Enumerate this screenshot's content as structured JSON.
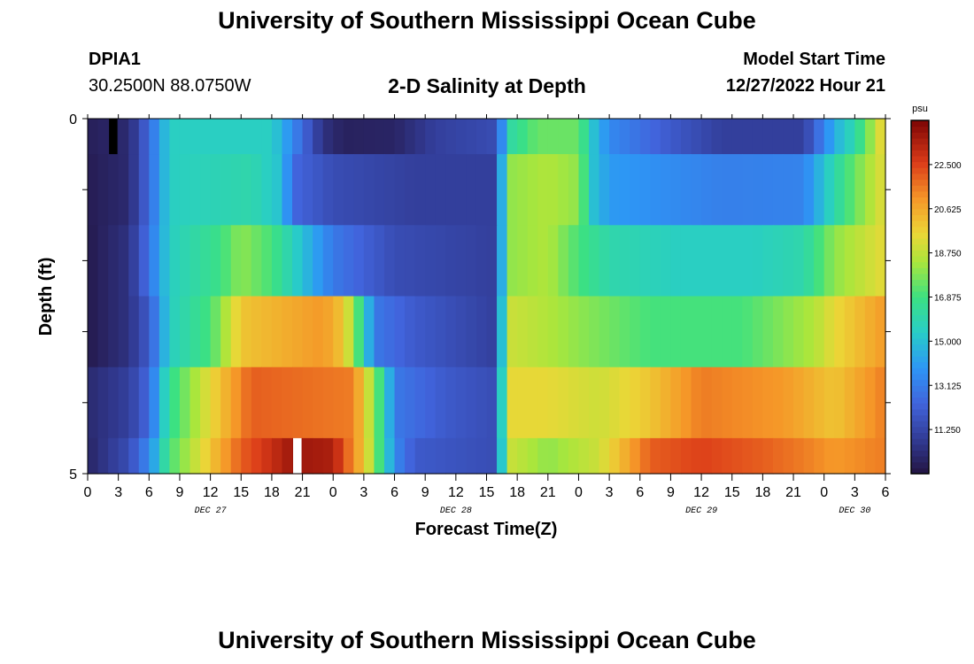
{
  "header": {
    "title": "University of Southern Mississippi Ocean Cube",
    "station": "DPIA1",
    "coords": "30.2500N  88.0750W",
    "plot_title": "2-D Salinity at Depth",
    "start_label": "Model Start Time",
    "start_value": "12/27/2022 Hour 21"
  },
  "footer": {
    "title": "University of Southern Mississippi Ocean Cube"
  },
  "chart_data": {
    "type": "heatmap",
    "title": "2-D Salinity at Depth",
    "xlabel": "Forecast Time(Z)",
    "ylabel": "Depth (ft)",
    "x_hours_from_dec27_00z": [
      0,
      78
    ],
    "y_range_ft": [
      0,
      5
    ],
    "y_tick_labels": [
      "0",
      "5"
    ],
    "x_tick_labels": [
      "0",
      "3",
      "6",
      "9",
      "12",
      "15",
      "18",
      "21",
      "0",
      "3",
      "6",
      "9",
      "12",
      "15",
      "18",
      "21",
      "0",
      "3",
      "6",
      "9",
      "12",
      "15",
      "18",
      "21",
      "0",
      "3",
      "6"
    ],
    "day_labels": [
      {
        "label": "DEC 27",
        "hour": 12
      },
      {
        "label": "DEC 28",
        "hour": 36
      },
      {
        "label": "DEC 29",
        "hour": 60
      },
      {
        "label": "DEC 30",
        "hour": 75
      }
    ],
    "colorbar": {
      "unit": "psu",
      "min": 9.375,
      "max": 24.375,
      "tick_labels": [
        "22.500",
        "20.625",
        "18.750",
        "16.875",
        "15.000",
        "13.125",
        "11.250"
      ],
      "tick_values": [
        22.5,
        20.625,
        18.75,
        16.875,
        15.0,
        13.125,
        11.25
      ]
    },
    "layers": [
      {
        "depth_band": "0-0.5 ft",
        "keyframes": [
          [
            0,
            9.8
          ],
          [
            4,
            10.2
          ],
          [
            6,
            12.5
          ],
          [
            8,
            15.5
          ],
          [
            18,
            15.5
          ],
          [
            20,
            13.5
          ],
          [
            23,
            10.5
          ],
          [
            25,
            9.9
          ],
          [
            30,
            10.0
          ],
          [
            34,
            11.0
          ],
          [
            40,
            11.5
          ],
          [
            40.5,
            13.5
          ],
          [
            41,
            16.0
          ],
          [
            44,
            17.5
          ],
          [
            48,
            17.5
          ],
          [
            49.5,
            15.0
          ],
          [
            51,
            13.5
          ],
          [
            57,
            12.0
          ],
          [
            62,
            11.0
          ],
          [
            70,
            11.0
          ],
          [
            73,
            14.5
          ],
          [
            75,
            16.0
          ],
          [
            76.5,
            18.0
          ],
          [
            78,
            20.0
          ]
        ]
      },
      {
        "depth_band": "0.5-1.5 ft",
        "keyframes": [
          [
            0,
            9.7
          ],
          [
            4,
            10.2
          ],
          [
            6,
            12.5
          ],
          [
            8,
            15.5
          ],
          [
            16,
            16.0
          ],
          [
            19,
            15.0
          ],
          [
            20,
            12.5
          ],
          [
            24,
            11.5
          ],
          [
            32,
            11.0
          ],
          [
            40,
            11.0
          ],
          [
            41,
            18.0
          ],
          [
            45,
            18.5
          ],
          [
            48,
            18.0
          ],
          [
            49.5,
            15.0
          ],
          [
            51,
            14.0
          ],
          [
            58,
            13.5
          ],
          [
            62,
            13.2
          ],
          [
            70,
            13.3
          ],
          [
            73,
            16.0
          ],
          [
            75,
            17.5
          ],
          [
            78,
            19.5
          ]
        ]
      },
      {
        "depth_band": "1.5-2.5 ft",
        "keyframes": [
          [
            0,
            9.6
          ],
          [
            4,
            10.5
          ],
          [
            6,
            12.8
          ],
          [
            8,
            15.5
          ],
          [
            13,
            16.8
          ],
          [
            15,
            18.0
          ],
          [
            18,
            17.0
          ],
          [
            21,
            15.0
          ],
          [
            24,
            13.0
          ],
          [
            30,
            11.5
          ],
          [
            40,
            11.0
          ],
          [
            41,
            18.0
          ],
          [
            45,
            18.5
          ],
          [
            48,
            17.0
          ],
          [
            51,
            16.0
          ],
          [
            58,
            15.5
          ],
          [
            65,
            15.5
          ],
          [
            70,
            16.0
          ],
          [
            73,
            18.0
          ],
          [
            78,
            19.5
          ]
        ]
      },
      {
        "depth_band": "2.5-3.5 ft",
        "keyframes": [
          [
            0,
            9.6
          ],
          [
            4,
            10.5
          ],
          [
            6,
            12.0
          ],
          [
            8,
            15.5
          ],
          [
            12,
            17.0
          ],
          [
            15,
            20.0
          ],
          [
            23,
            21.0
          ],
          [
            25,
            20.0
          ],
          [
            27,
            16.0
          ],
          [
            28,
            13.0
          ],
          [
            32,
            12.0
          ],
          [
            40,
            11.0
          ],
          [
            41,
            19.0
          ],
          [
            45,
            18.5
          ],
          [
            48,
            18.0
          ],
          [
            55,
            17.0
          ],
          [
            64,
            17.0
          ],
          [
            71,
            18.5
          ],
          [
            73,
            19.5
          ],
          [
            78,
            21.0
          ]
        ]
      },
      {
        "depth_band": "3.5-4.5 ft",
        "keyframes": [
          [
            0,
            10.2
          ],
          [
            4,
            11.0
          ],
          [
            6,
            12.5
          ],
          [
            8,
            16.5
          ],
          [
            12,
            19.5
          ],
          [
            16,
            22.0
          ],
          [
            26,
            21.5
          ],
          [
            28,
            18.0
          ],
          [
            29,
            16.0
          ],
          [
            30,
            13.0
          ],
          [
            35,
            12.0
          ],
          [
            40,
            11.5
          ],
          [
            41,
            19.5
          ],
          [
            45,
            19.5
          ],
          [
            50,
            19.0
          ],
          [
            55,
            20.0
          ],
          [
            60,
            21.5
          ],
          [
            68,
            21.0
          ],
          [
            73,
            20.0
          ],
          [
            78,
            21.5
          ]
        ]
      },
      {
        "depth_band": "4.5-5 ft",
        "keyframes": [
          [
            0,
            10.0
          ],
          [
            4,
            11.5
          ],
          [
            6,
            13.5
          ],
          [
            8,
            17.0
          ],
          [
            12,
            20.0
          ],
          [
            15,
            22.0
          ],
          [
            18,
            23.0
          ],
          [
            20,
            23.8
          ],
          [
            24,
            23.5
          ],
          [
            27,
            20.0
          ],
          [
            28,
            18.0
          ],
          [
            29,
            16.0
          ],
          [
            30,
            13.5
          ],
          [
            32,
            12.0
          ],
          [
            40,
            11.5
          ],
          [
            41,
            19.0
          ],
          [
            45,
            18.0
          ],
          [
            50,
            19.0
          ],
          [
            55,
            22.0
          ],
          [
            60,
            22.5
          ],
          [
            66,
            22.0
          ],
          [
            70,
            21.5
          ],
          [
            73,
            21.0
          ],
          [
            78,
            21.5
          ]
        ]
      }
    ],
    "markers": [
      {
        "hour": 2,
        "layer": 0,
        "color": "#000000"
      },
      {
        "hour": 20,
        "layer": 5,
        "color": "#ffffff"
      }
    ]
  }
}
